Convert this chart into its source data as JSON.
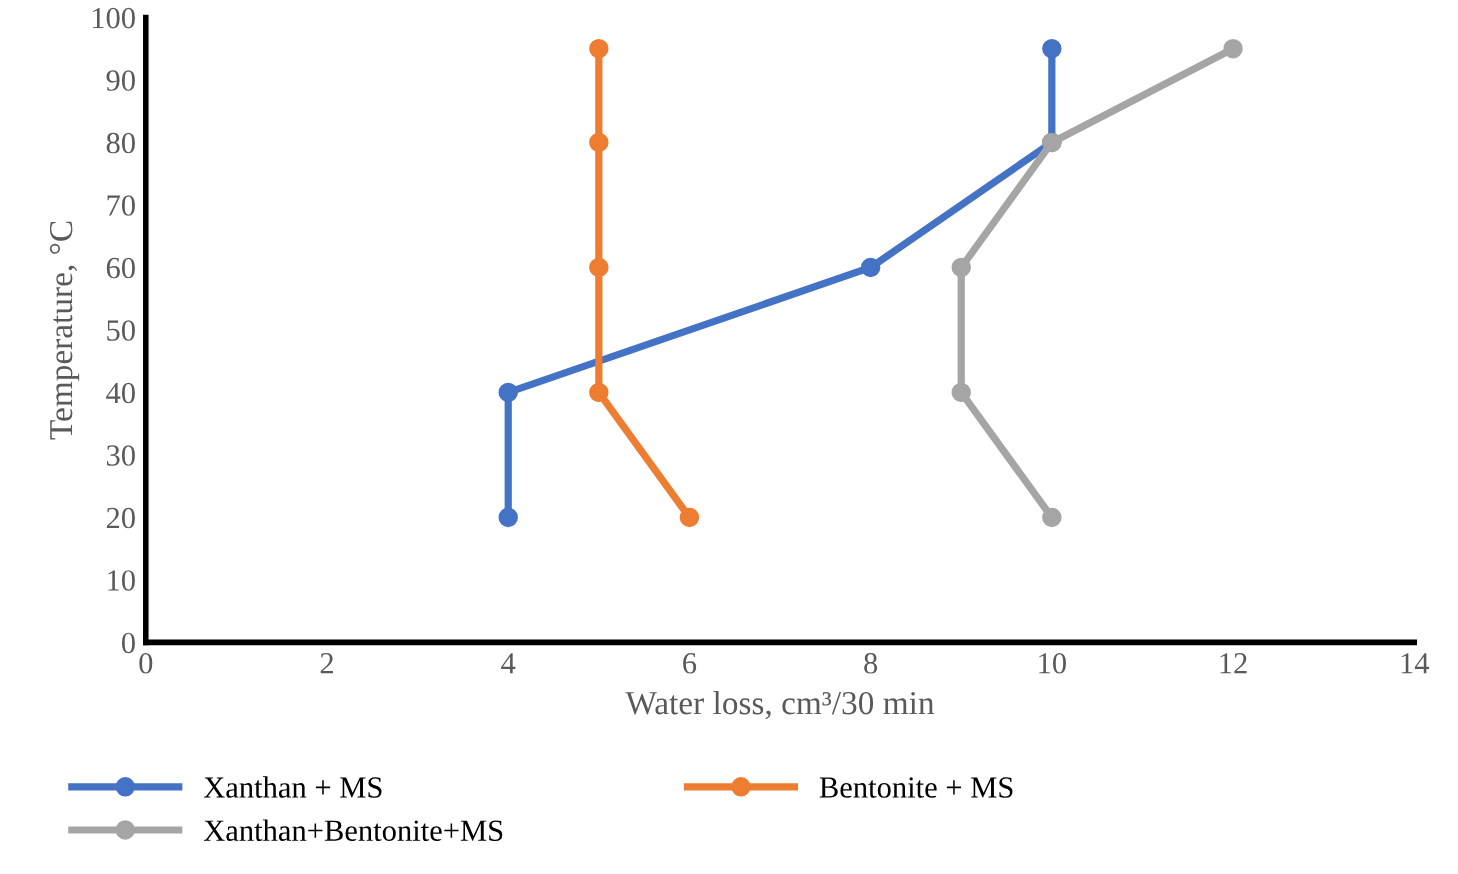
{
  "chart_data": {
    "type": "line",
    "xlabel": "Water loss, cm³/30 min",
    "ylabel": "Temperature, °C",
    "xlim": [
      0,
      14
    ],
    "xticks": [
      0,
      2,
      4,
      6,
      8,
      10,
      12,
      14
    ],
    "ylim": [
      0,
      100
    ],
    "yticks": [
      0,
      10,
      20,
      30,
      40,
      50,
      60,
      70,
      80,
      90,
      100
    ],
    "grid": false,
    "legend": "bottom",
    "marker": "circle",
    "line_style": "solid",
    "series": [
      {
        "name": "Xanthan + MS",
        "color": "#4472c4",
        "x": [
          4,
          4,
          8,
          10,
          10
        ],
        "values": [
          20,
          40,
          60,
          80,
          95
        ]
      },
      {
        "name": "Bentonite + MS",
        "color": "#ed7d31",
        "x": [
          6,
          5,
          5,
          5,
          5
        ],
        "values": [
          20,
          40,
          60,
          80,
          95
        ]
      },
      {
        "name": "Xanthan+Bentonite+MS",
        "color": "#a5a5a5",
        "x": [
          10,
          9,
          9,
          10,
          12
        ],
        "values": [
          20,
          40,
          60,
          80,
          95
        ]
      }
    ]
  }
}
